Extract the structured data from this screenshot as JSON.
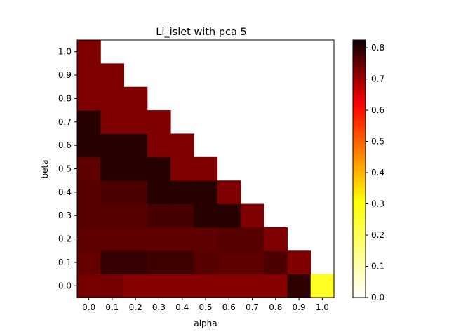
{
  "chart_data": {
    "type": "heatmap",
    "title": "Li_islet with pca 5",
    "xlabel": "alpha",
    "ylabel": "beta",
    "x_categories": [
      "0.0",
      "0.1",
      "0.2",
      "0.3",
      "0.4",
      "0.5",
      "0.6",
      "0.7",
      "0.8",
      "0.9",
      "1.0"
    ],
    "y_categories": [
      "0.0",
      "0.1",
      "0.2",
      "0.3",
      "0.4",
      "0.5",
      "0.6",
      "0.7",
      "0.8",
      "0.9",
      "1.0"
    ],
    "colormap": "hot_r",
    "vmin": 0.0,
    "vmax": 0.825,
    "colorbar_ticks": [
      "0.0",
      "0.1",
      "0.2",
      "0.3",
      "0.4",
      "0.5",
      "0.6",
      "0.7",
      "0.8"
    ],
    "grid": false,
    "values_note": "rows indexed by beta (0.0 first); cells with alpha + beta > 1 are empty",
    "values": [
      [
        0.71,
        0.71,
        0.69,
        0.69,
        0.69,
        0.69,
        0.69,
        0.69,
        0.69,
        0.8,
        0.18
      ],
      [
        0.73,
        0.79,
        0.79,
        0.78,
        0.78,
        0.75,
        0.74,
        0.74,
        0.76,
        0.7,
        null
      ],
      [
        0.74,
        0.74,
        0.74,
        0.74,
        0.74,
        0.74,
        0.75,
        0.75,
        0.7,
        null,
        null
      ],
      [
        0.75,
        0.75,
        0.75,
        0.77,
        0.77,
        0.81,
        0.81,
        0.7,
        null,
        null,
        null
      ],
      [
        0.75,
        0.76,
        0.76,
        0.81,
        0.81,
        0.81,
        0.7,
        null,
        null,
        null,
        null
      ],
      [
        0.74,
        0.81,
        0.81,
        0.81,
        0.7,
        0.7,
        null,
        null,
        null,
        null,
        null
      ],
      [
        0.81,
        0.81,
        0.81,
        0.7,
        0.7,
        null,
        null,
        null,
        null,
        null,
        null
      ],
      [
        0.81,
        0.7,
        0.7,
        0.7,
        null,
        null,
        null,
        null,
        null,
        null,
        null
      ],
      [
        0.7,
        0.7,
        0.7,
        null,
        null,
        null,
        null,
        null,
        null,
        null,
        null
      ],
      [
        0.7,
        0.7,
        null,
        null,
        null,
        null,
        null,
        null,
        null,
        null,
        null
      ],
      [
        0.7,
        null,
        null,
        null,
        null,
        null,
        null,
        null,
        null,
        null,
        null
      ]
    ]
  }
}
